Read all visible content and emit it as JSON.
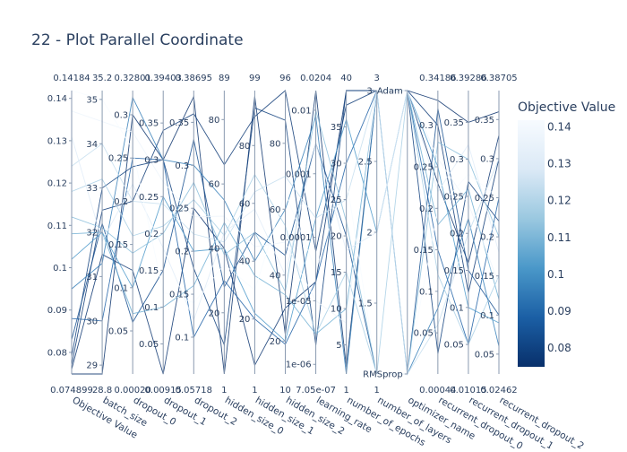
{
  "chart_data": {
    "type": "parallel_coordinates",
    "title": "22 - Plot Parallel Coordinate",
    "colorbar": {
      "title": "Objective Value",
      "range": [
        0.074899,
        0.14184
      ],
      "ticks": [
        "0.14",
        "0.13",
        "0.12",
        "0.11",
        "0.1",
        "0.09",
        "0.08"
      ],
      "tick_values": [
        0.14,
        0.13,
        0.12,
        0.11,
        0.1,
        0.09,
        0.08
      ],
      "colorscale": [
        "#08306b",
        "#1b5fa5",
        "#4a98c9",
        "#9ac8e0",
        "#dbe9f6",
        "#f7fbff"
      ]
    },
    "axes": [
      {
        "label": "Objective Value",
        "min": 0.074899,
        "max": 0.14184,
        "min_label": "0.074899",
        "max_label": "0.14184",
        "ticks": [
          {
            "v": 0.08,
            "t": "0.08"
          },
          {
            "v": 0.09,
            "t": "0.09"
          },
          {
            "v": 0.1,
            "t": "0.1"
          },
          {
            "v": 0.11,
            "t": "0.11"
          },
          {
            "v": 0.12,
            "t": "0.12"
          },
          {
            "v": 0.13,
            "t": "0.13"
          },
          {
            "v": 0.14,
            "t": "0.14"
          }
        ]
      },
      {
        "label": "batch_size",
        "min": 28.8,
        "max": 35.2,
        "min_label": "28.8",
        "max_label": "35.2",
        "ticks": [
          {
            "v": 29,
            "t": "29"
          },
          {
            "v": 30,
            "t": "30"
          },
          {
            "v": 31,
            "t": "31"
          },
          {
            "v": 32,
            "t": "32"
          },
          {
            "v": 33,
            "t": "33"
          },
          {
            "v": 34,
            "t": "34"
          },
          {
            "v": 35,
            "t": "35"
          }
        ]
      },
      {
        "label": "dropout_0",
        "min": 0.0002,
        "max": 0.32801,
        "min_label": "0.00020",
        "max_label": "0.32801",
        "ticks": [
          {
            "v": 0.05,
            "t": "0.05"
          },
          {
            "v": 0.1,
            "t": "0.1"
          },
          {
            "v": 0.15,
            "t": "0.15"
          },
          {
            "v": 0.2,
            "t": "0.2"
          },
          {
            "v": 0.25,
            "t": "0.25"
          },
          {
            "v": 0.3,
            "t": "0.3"
          }
        ]
      },
      {
        "label": "dropout_1",
        "min": 0.00915,
        "max": 0.39403,
        "min_label": "0.00915",
        "max_label": "0.39403",
        "ticks": [
          {
            "v": 0.05,
            "t": "0.05"
          },
          {
            "v": 0.1,
            "t": "0.1"
          },
          {
            "v": 0.15,
            "t": "0.15"
          },
          {
            "v": 0.2,
            "t": "0.2"
          },
          {
            "v": 0.25,
            "t": "0.25"
          },
          {
            "v": 0.3,
            "t": "0.3"
          },
          {
            "v": 0.35,
            "t": "0.35"
          }
        ]
      },
      {
        "label": "dropout_2",
        "min": 0.05718,
        "max": 0.38695,
        "min_label": "0.05718",
        "max_label": "0.38695",
        "ticks": [
          {
            "v": 0.1,
            "t": "0.1"
          },
          {
            "v": 0.15,
            "t": "0.15"
          },
          {
            "v": 0.2,
            "t": "0.2"
          },
          {
            "v": 0.25,
            "t": "0.25"
          },
          {
            "v": 0.3,
            "t": "0.3"
          },
          {
            "v": 0.35,
            "t": "0.35"
          }
        ]
      },
      {
        "label": "hidden_size_0",
        "min": 1,
        "max": 89,
        "min_label": "1",
        "max_label": "89",
        "ticks": [
          {
            "v": 20,
            "t": "20"
          },
          {
            "v": 40,
            "t": "40"
          },
          {
            "v": 60,
            "t": "60"
          },
          {
            "v": 80,
            "t": "80"
          }
        ]
      },
      {
        "label": "hidden_size_1",
        "min": 1,
        "max": 99,
        "min_label": "1",
        "max_label": "99",
        "ticks": [
          {
            "v": 20,
            "t": "20"
          },
          {
            "v": 40,
            "t": "40"
          },
          {
            "v": 60,
            "t": "60"
          },
          {
            "v": 80,
            "t": "80"
          }
        ]
      },
      {
        "label": "hidden_size_2",
        "min": 10,
        "max": 96,
        "min_label": "10",
        "max_label": "96",
        "ticks": [
          {
            "v": 20,
            "t": "20"
          },
          {
            "v": 40,
            "t": "40"
          },
          {
            "v": 60,
            "t": "60"
          },
          {
            "v": 80,
            "t": "80"
          }
        ]
      },
      {
        "label": "learning_rate",
        "log": true,
        "min": 7.05e-07,
        "max": 0.0204,
        "min_label": "7.05e-07",
        "max_label": "0.0204",
        "ticks": [
          {
            "v": 1e-06,
            "t": "1e-06"
          },
          {
            "v": 1e-05,
            "t": "1e-05"
          },
          {
            "v": 0.0001,
            "t": "0.0001"
          },
          {
            "v": 0.001,
            "t": "0.001"
          },
          {
            "v": 0.01,
            "t": "0.01"
          }
        ]
      },
      {
        "label": "number_of_epochs",
        "min": 1,
        "max": 40,
        "min_label": "1",
        "max_label": "40",
        "ticks": [
          {
            "v": 5,
            "t": "5"
          },
          {
            "v": 10,
            "t": "10"
          },
          {
            "v": 15,
            "t": "15"
          },
          {
            "v": 20,
            "t": "20"
          },
          {
            "v": 25,
            "t": "25"
          },
          {
            "v": 30,
            "t": "30"
          },
          {
            "v": 35,
            "t": "35"
          }
        ]
      },
      {
        "label": "number_of_layers",
        "min": 1,
        "max": 3,
        "min_label": "1",
        "max_label": "3",
        "ticks": [
          {
            "v": 1.5,
            "t": "1.5"
          },
          {
            "v": 2,
            "t": "2"
          },
          {
            "v": 2.5,
            "t": "2.5"
          },
          {
            "v": 3,
            "t": "3"
          }
        ]
      },
      {
        "label": "optimizer_name",
        "categorical": true,
        "min": 0,
        "max": 1,
        "ticks": [
          {
            "v": 0,
            "t": "RMSprop"
          },
          {
            "v": 1,
            "t": "Adam"
          }
        ]
      },
      {
        "label": "recurrent_dropout_0",
        "min": 0.00044,
        "max": 0.34186,
        "min_label": "0.00044",
        "max_label": "0.34186",
        "ticks": [
          {
            "v": 0.05,
            "t": "0.05"
          },
          {
            "v": 0.1,
            "t": "0.1"
          },
          {
            "v": 0.15,
            "t": "0.15"
          },
          {
            "v": 0.2,
            "t": "0.2"
          },
          {
            "v": 0.25,
            "t": "0.25"
          },
          {
            "v": 0.3,
            "t": "0.3"
          }
        ]
      },
      {
        "label": "recurrent_dropout_1",
        "min": 0.01015,
        "max": 0.39286,
        "min_label": "0.01015",
        "max_label": "0.39286",
        "ticks": [
          {
            "v": 0.05,
            "t": "0.05"
          },
          {
            "v": 0.1,
            "t": "0.1"
          },
          {
            "v": 0.15,
            "t": "0.15"
          },
          {
            "v": 0.2,
            "t": "0.2"
          },
          {
            "v": 0.25,
            "t": "0.25"
          },
          {
            "v": 0.3,
            "t": "0.3"
          },
          {
            "v": 0.35,
            "t": "0.35"
          }
        ]
      },
      {
        "label": "recurrent_dropout_2",
        "min": 0.02462,
        "max": 0.38705,
        "min_label": "0.02462",
        "max_label": "0.38705",
        "ticks": [
          {
            "v": 0.05,
            "t": "0.05"
          },
          {
            "v": 0.1,
            "t": "0.1"
          },
          {
            "v": 0.15,
            "t": "0.15"
          },
          {
            "v": 0.2,
            "t": "0.2"
          },
          {
            "v": 0.25,
            "t": "0.25"
          },
          {
            "v": 0.3,
            "t": "0.3"
          },
          {
            "v": 0.35,
            "t": "0.35"
          }
        ]
      }
    ],
    "lines": [
      [
        0.0749,
        28.8,
        0.3,
        0.3,
        0.38,
        1,
        97,
        22,
        0.0204,
        2,
        3,
        1,
        0.33,
        0.35,
        0.36
      ],
      [
        0.076,
        31.5,
        0.12,
        0.009,
        0.25,
        40,
        4,
        30,
        2e-05,
        40,
        3,
        1,
        0.23,
        0.16,
        0.33
      ],
      [
        0.077,
        32.5,
        0.2,
        0.34,
        0.36,
        66,
        90,
        96,
        6e-05,
        38,
        3,
        1,
        0.3,
        0.12,
        0.3
      ],
      [
        0.079,
        33.0,
        0.24,
        0.3,
        0.18,
        10,
        93,
        87,
        2e-06,
        40,
        3,
        1,
        0.025,
        0.27,
        0.22
      ],
      [
        0.083,
        32.2,
        0.06,
        0.15,
        0.33,
        28,
        50,
        46,
        0.003,
        20,
        1,
        0,
        0.32,
        0.15,
        0.1
      ],
      [
        0.088,
        30.0,
        0.25,
        0.3,
        0.1,
        30,
        20,
        19,
        2e-05,
        30,
        3,
        1,
        0.15,
        0.05,
        0.25
      ],
      [
        0.095,
        31.3,
        0.32,
        0.3,
        0.3,
        55,
        40,
        60,
        0.008,
        1,
        3,
        0,
        0.08,
        0.22,
        0.06
      ],
      [
        0.102,
        32.0,
        0.1,
        0.25,
        0.2,
        40,
        22,
        20,
        0.0002,
        36,
        2,
        1,
        0.25,
        0.1,
        0.09
      ],
      [
        0.108,
        32.0,
        0.07,
        0.1,
        0.16,
        48,
        35,
        34,
        3e-06,
        10,
        3,
        1,
        0.18,
        0.26,
        0.12
      ],
      [
        0.112,
        32.1,
        0.14,
        0.2,
        0.28,
        38,
        50,
        35,
        0.01,
        22,
        1,
        0,
        0.28,
        0.3,
        0.2
      ],
      [
        0.118,
        33.2,
        0.16,
        0.21,
        0.26,
        44,
        70,
        55,
        3e-06,
        15,
        1,
        1,
        0.12,
        0.05,
        0.15
      ],
      [
        0.124,
        34.0,
        0.2,
        0.24,
        0.22,
        42,
        64,
        70,
        0.0002,
        25,
        3,
        0,
        0.06,
        0.2,
        0.3
      ],
      [
        0.131,
        31.8,
        0.22,
        0.18,
        0.12,
        45,
        58,
        40,
        0.003,
        18,
        2,
        1,
        0.22,
        0.32,
        0.18
      ],
      [
        0.137,
        34.5,
        0.28,
        0.27,
        0.24,
        50,
        45,
        50,
        1e-05,
        8,
        3,
        1,
        0.26,
        0.24,
        0.14
      ],
      [
        0.14184,
        35.0,
        0.26,
        0.12,
        0.14,
        35,
        30,
        65,
        3e-05,
        28,
        1,
        0,
        0.2,
        0.28,
        0.25
      ]
    ]
  }
}
